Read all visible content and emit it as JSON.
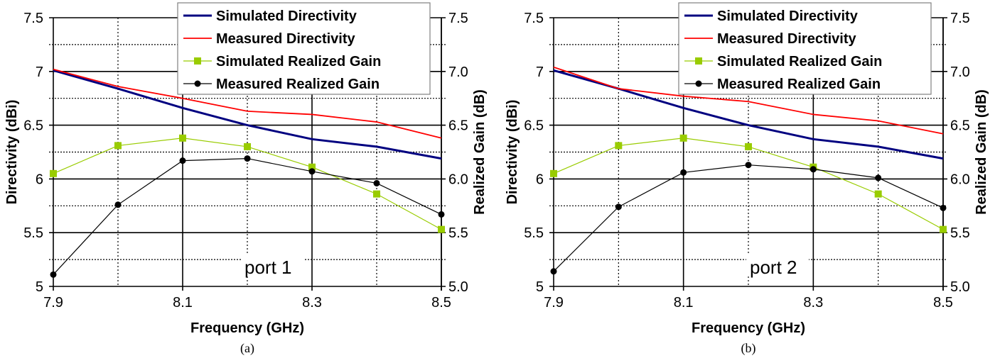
{
  "colors": {
    "simulated_directivity": "#000080",
    "measured_directivity": "#ff0000",
    "simulated_realized_gain": "#99cc00",
    "measured_realized_gain": "#000000"
  },
  "chart_data": [
    {
      "type": "line",
      "caption": "(a)",
      "annotation": "port 1",
      "xlabel": "Frequency (GHz)",
      "ylabel": "Directivity (dBi)",
      "y2label": "Realized Gain (dB)",
      "x": [
        7.9,
        8.0,
        8.1,
        8.2,
        8.3,
        8.4,
        8.5
      ],
      "xticks": [
        "7.9",
        "8.1",
        "8.3",
        "8.5"
      ],
      "yticks": [
        "5",
        "5.5",
        "6",
        "6.5",
        "7",
        "7.5"
      ],
      "y2ticks": [
        "5.0",
        "5.5",
        "6.0",
        "6.5",
        "7.0",
        "7.5"
      ],
      "xlim": [
        7.9,
        8.5
      ],
      "ylim": [
        5,
        7.5
      ],
      "y2lim": [
        5,
        7.5
      ],
      "grid": true,
      "legend": "top-right",
      "series": [
        {
          "name": "Simulated Directivity",
          "values": [
            7.01,
            6.84,
            6.66,
            6.5,
            6.37,
            6.3,
            6.19
          ]
        },
        {
          "name": "Measured Directivity",
          "values": [
            7.02,
            6.86,
            6.75,
            6.63,
            6.6,
            6.53,
            6.38
          ]
        },
        {
          "name": "Simulated Realized Gain",
          "values": [
            6.05,
            6.31,
            6.38,
            6.3,
            6.11,
            5.86,
            5.53
          ]
        },
        {
          "name": "Measured Realized Gain",
          "values": [
            5.11,
            5.76,
            6.17,
            6.19,
            6.07,
            5.96,
            5.67
          ]
        }
      ]
    },
    {
      "type": "line",
      "caption": "(b)",
      "annotation": "port 2",
      "xlabel": "Frequency (GHz)",
      "ylabel": "Directivity (dBi)",
      "y2label": "Realized Gain (dB)",
      "x": [
        7.9,
        8.0,
        8.1,
        8.2,
        8.3,
        8.4,
        8.5
      ],
      "xticks": [
        "7.9",
        "8.1",
        "8.3",
        "8.5"
      ],
      "yticks": [
        "5",
        "5.5",
        "6",
        "6.5",
        "7",
        "7.5"
      ],
      "y2ticks": [
        "5.0",
        "5.5",
        "6.0",
        "6.5",
        "7.0",
        "7.5"
      ],
      "xlim": [
        7.9,
        8.5
      ],
      "ylim": [
        5,
        7.5
      ],
      "y2lim": [
        5,
        7.5
      ],
      "grid": true,
      "legend": "top-right",
      "series": [
        {
          "name": "Simulated Directivity",
          "values": [
            7.01,
            6.84,
            6.66,
            6.5,
            6.37,
            6.3,
            6.19
          ]
        },
        {
          "name": "Measured Directivity",
          "values": [
            7.04,
            6.84,
            6.77,
            6.72,
            6.6,
            6.54,
            6.42
          ]
        },
        {
          "name": "Simulated Realized Gain",
          "values": [
            6.05,
            6.31,
            6.38,
            6.3,
            6.11,
            5.86,
            5.53
          ]
        },
        {
          "name": "Measured Realized Gain",
          "values": [
            5.14,
            5.74,
            6.06,
            6.13,
            6.09,
            6.01,
            5.73
          ]
        }
      ]
    }
  ]
}
